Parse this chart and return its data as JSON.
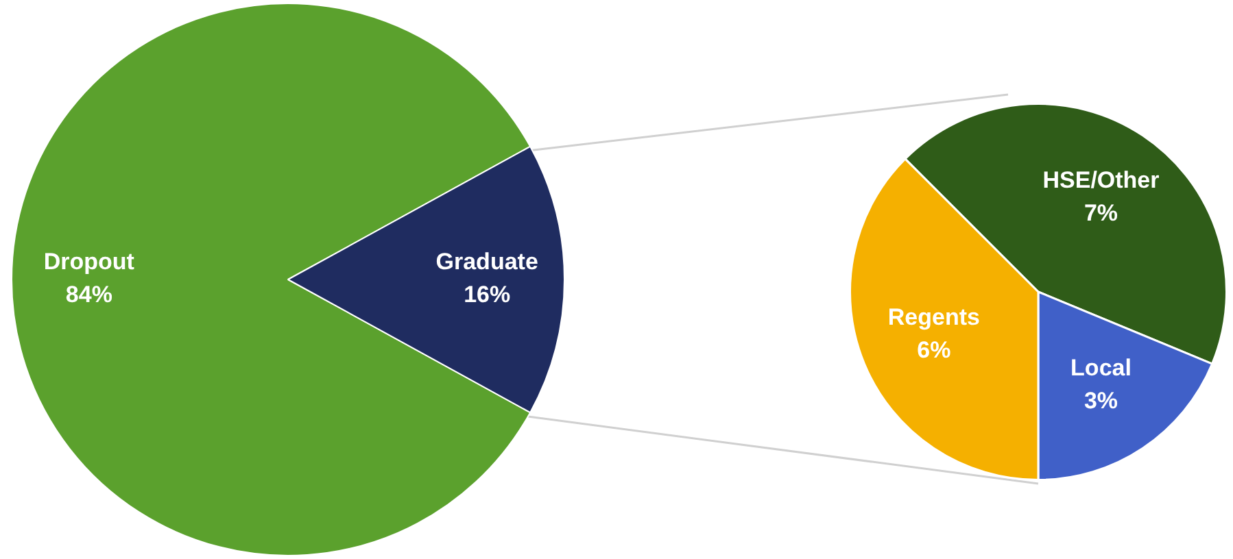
{
  "chart_data": [
    {
      "type": "pie",
      "categories": [
        "Dropout",
        "Graduate"
      ],
      "values": [
        84,
        16
      ],
      "colors": [
        "#5ba12d",
        "#1f2c60"
      ],
      "value_labels": [
        "84%",
        "16%"
      ],
      "legend": false
    },
    {
      "type": "pie",
      "categories": [
        "HSE/Other",
        "Local",
        "Regents"
      ],
      "values": [
        7,
        3,
        6
      ],
      "colors": [
        "#2f5c18",
        "#4060c8",
        "#f5b000"
      ],
      "value_labels": [
        "7%",
        "3%",
        "6%"
      ],
      "legend": false
    }
  ]
}
